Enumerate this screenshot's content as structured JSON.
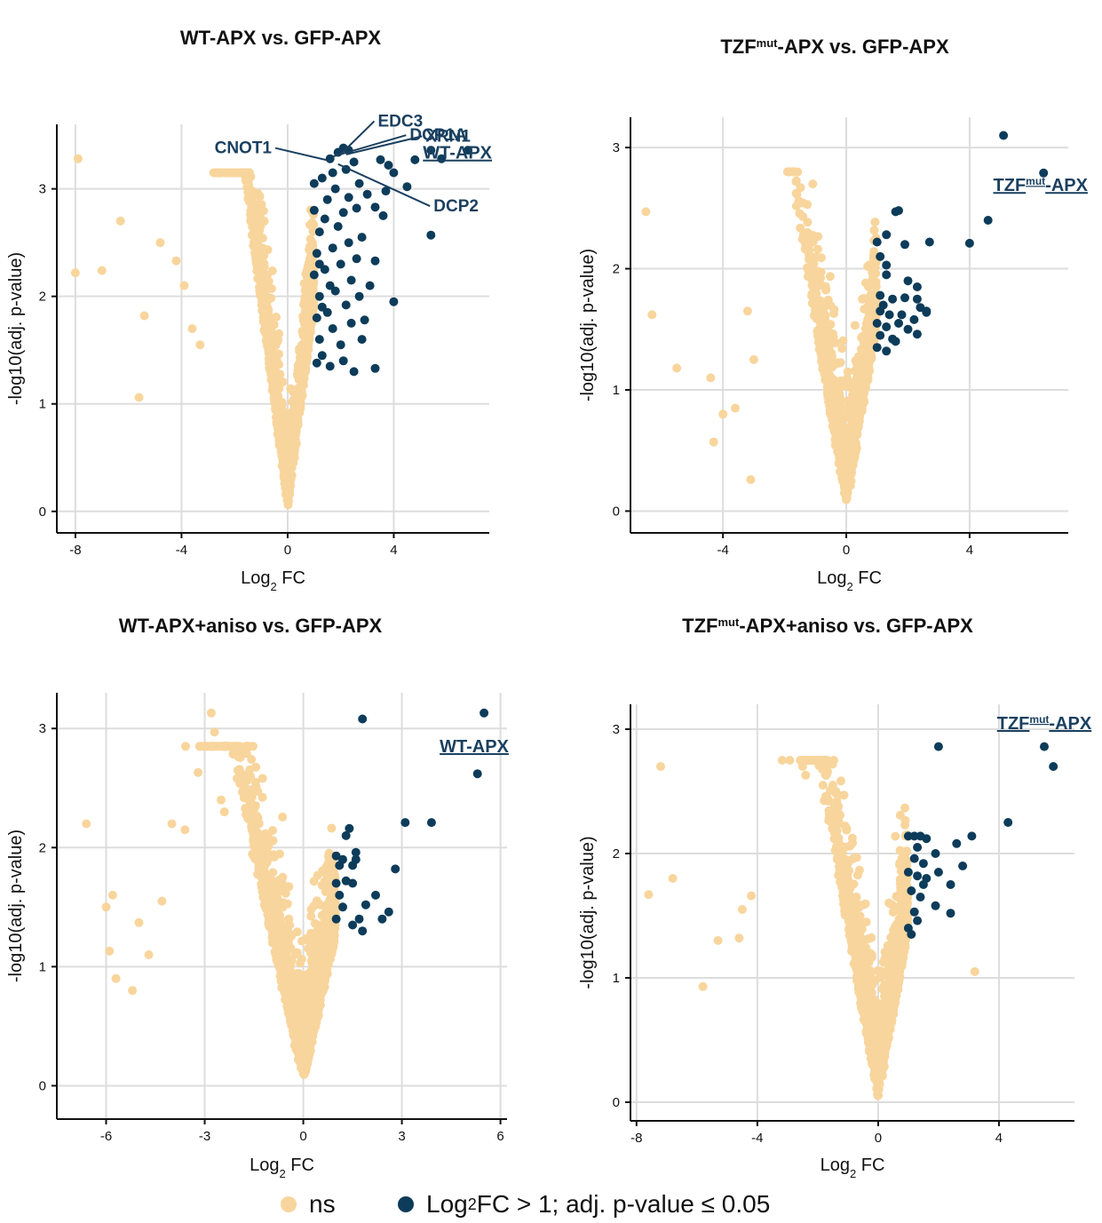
{
  "colors": {
    "ns": "#F8D59C",
    "sig": "#0D3C5A",
    "grid": "#DDDDDD",
    "axis": "#111111",
    "annotation": "#1A4060"
  },
  "legend": {
    "ns_label": "ns",
    "sig_label_pre": "Log",
    "sig_label_sub": "2",
    "sig_label_post": "FC > 1; adj. p-value ≤ 0.05"
  },
  "chart_data": [
    {
      "id": "wt",
      "type": "scatter",
      "title": "WT-APX vs. GFP-APX",
      "xlabel": "Log2 FC",
      "ylabel": "-log10(adj. p-value)",
      "xlim": [
        -8.7,
        7.6
      ],
      "ylim": [
        -0.2,
        3.6
      ],
      "xticks": [
        -8,
        -4,
        0,
        4
      ],
      "yticks": [
        0,
        1,
        2,
        3
      ],
      "seed": 11,
      "ns_count": 1700,
      "ns_spread_neg": 1.25,
      "ns_spread_pos": 1.0,
      "ns_y_slope": 1.9,
      "ns_outliers": [
        [
          -7.9,
          3.28
        ],
        [
          -8.0,
          2.22
        ],
        [
          -7.0,
          2.24
        ],
        [
          -6.3,
          2.7
        ],
        [
          -4.8,
          2.5
        ],
        [
          -5.4,
          1.82
        ],
        [
          -5.6,
          1.06
        ],
        [
          -4.2,
          2.33
        ],
        [
          -3.9,
          2.1
        ],
        [
          -3.6,
          1.7
        ],
        [
          -3.3,
          1.55
        ]
      ],
      "sig_points": [
        [
          1.6,
          3.28
        ],
        [
          1.9,
          3.34
        ],
        [
          2.1,
          3.38
        ],
        [
          2.3,
          3.36
        ],
        [
          2.5,
          3.25
        ],
        [
          2.2,
          3.18
        ],
        [
          1.7,
          3.15
        ],
        [
          1.3,
          3.1
        ],
        [
          1.0,
          3.05
        ],
        [
          3.5,
          3.27
        ],
        [
          3.8,
          3.22
        ],
        [
          4.0,
          3.15
        ],
        [
          4.8,
          3.27
        ],
        [
          5.4,
          3.36
        ],
        [
          5.8,
          3.28
        ],
        [
          6.8,
          3.36
        ],
        [
          3.7,
          2.98
        ],
        [
          4.5,
          3.02
        ],
        [
          3.0,
          2.95
        ],
        [
          3.3,
          2.83
        ],
        [
          3.6,
          2.75
        ],
        [
          5.4,
          2.57
        ],
        [
          3.3,
          2.33
        ],
        [
          4.0,
          1.95
        ],
        [
          3.3,
          1.33
        ],
        [
          2.5,
          1.3
        ],
        [
          1.6,
          1.35
        ],
        [
          1.1,
          1.38
        ],
        [
          1.3,
          1.45
        ],
        [
          2.0,
          1.55
        ],
        [
          2.8,
          1.6
        ],
        [
          1.2,
          1.6
        ],
        [
          1.7,
          1.7
        ],
        [
          2.4,
          1.75
        ],
        [
          2.9,
          1.78
        ],
        [
          1.1,
          1.8
        ],
        [
          1.5,
          1.85
        ],
        [
          2.2,
          1.92
        ],
        [
          2.7,
          2.0
        ],
        [
          3.1,
          2.1
        ],
        [
          1.2,
          2.0
        ],
        [
          1.8,
          2.05
        ],
        [
          2.4,
          2.15
        ],
        [
          1.0,
          2.2
        ],
        [
          1.4,
          2.25
        ],
        [
          2.0,
          2.3
        ],
        [
          2.6,
          2.35
        ],
        [
          1.1,
          2.4
        ],
        [
          1.7,
          2.45
        ],
        [
          2.3,
          2.5
        ],
        [
          2.8,
          2.55
        ],
        [
          1.2,
          2.6
        ],
        [
          1.9,
          2.65
        ],
        [
          1.4,
          2.72
        ],
        [
          2.1,
          2.78
        ],
        [
          2.6,
          2.82
        ],
        [
          1.0,
          2.8
        ],
        [
          1.5,
          2.9
        ],
        [
          2.3,
          2.92
        ],
        [
          1.8,
          3.0
        ],
        [
          2.7,
          3.05
        ],
        [
          1.2,
          2.3
        ],
        [
          1.6,
          2.1
        ],
        [
          2.1,
          1.4
        ],
        [
          1.3,
          1.9
        ]
      ],
      "ns_color_key": "ns",
      "labels": [
        {
          "text": "DCP1A",
          "tx": 4.6,
          "ty": 3.45,
          "px": 1.7,
          "py": 3.3
        },
        {
          "text": "EDC3",
          "tx": 3.4,
          "ty": 3.58,
          "px": 1.95,
          "py": 3.31
        },
        {
          "text": "XRN1",
          "tx": 5.2,
          "ty": 3.44,
          "px": 2.2,
          "py": 3.32
        },
        {
          "text": "CNOT1",
          "tx": -0.6,
          "ty": 3.33,
          "px": 1.6,
          "py": 3.26
        },
        {
          "text": "DCP2",
          "tx": 5.5,
          "ty": 2.79,
          "px": 1.9,
          "py": 3.23
        }
      ],
      "bait": {
        "pre": "WT-APX",
        "sup": "",
        "post": "",
        "tx": 6.4,
        "ty": 3.28
      }
    },
    {
      "id": "tzf",
      "type": "scatter",
      "title_pre": "TZF",
      "title_sup": "mut",
      "title_post": "-APX vs. GFP-APX",
      "xlabel": "Log2 FC",
      "ylabel": "-log10(adj. p-value)",
      "xlim": [
        -7.0,
        7.2
      ],
      "ylim": [
        -0.18,
        3.25
      ],
      "xticks": [
        -4,
        0,
        4
      ],
      "yticks": [
        0,
        1,
        2,
        3
      ],
      "seed": 23,
      "ns_count": 1200,
      "ns_spread_neg": 0.75,
      "ns_spread_pos": 0.75,
      "ns_y_slope": 1.5,
      "ns_outliers": [
        [
          -6.5,
          2.47
        ],
        [
          -6.3,
          1.62
        ],
        [
          -5.5,
          1.18
        ],
        [
          -4.4,
          1.1
        ],
        [
          -4.3,
          0.57
        ],
        [
          -3.1,
          0.26
        ],
        [
          -3.0,
          1.25
        ],
        [
          -4.0,
          0.8
        ],
        [
          -3.6,
          0.85
        ],
        [
          -3.2,
          1.65
        ],
        [
          -1.3,
          2.25
        ],
        [
          -1.2,
          2.15
        ]
      ],
      "sig_points": [
        [
          5.1,
          3.1
        ],
        [
          6.4,
          2.79
        ],
        [
          4.6,
          2.4
        ],
        [
          4.0,
          2.21
        ],
        [
          2.7,
          2.22
        ],
        [
          1.6,
          2.47
        ],
        [
          1.7,
          2.48
        ],
        [
          1.0,
          2.22
        ],
        [
          1.3,
          2.28
        ],
        [
          1.9,
          2.2
        ],
        [
          1.1,
          2.1
        ],
        [
          1.3,
          2.03
        ],
        [
          1.3,
          1.95
        ],
        [
          2.0,
          1.9
        ],
        [
          2.3,
          1.85
        ],
        [
          2.3,
          1.75
        ],
        [
          1.1,
          1.78
        ],
        [
          1.5,
          1.75
        ],
        [
          1.9,
          1.76
        ],
        [
          2.6,
          1.65
        ],
        [
          1.1,
          1.65
        ],
        [
          1.4,
          1.62
        ],
        [
          1.8,
          1.62
        ],
        [
          2.2,
          1.58
        ],
        [
          2.4,
          1.68
        ],
        [
          1.0,
          1.55
        ],
        [
          1.3,
          1.52
        ],
        [
          1.7,
          1.55
        ],
        [
          2.0,
          1.5
        ],
        [
          1.1,
          1.45
        ],
        [
          1.5,
          1.42
        ],
        [
          2.3,
          1.46
        ],
        [
          1.0,
          1.35
        ],
        [
          1.3,
          1.32
        ],
        [
          1.6,
          1.4
        ],
        [
          2.6,
          1.64
        ],
        [
          1.2,
          1.7
        ]
      ],
      "labels": [],
      "bait": {
        "pre": "TZF",
        "sup": "mut",
        "post": "-APX",
        "tx": 6.3,
        "ty": 2.64
      }
    },
    {
      "id": "wtaniso",
      "type": "scatter",
      "title": "WT-APX+aniso vs. GFP-APX",
      "xlabel": "Log2 FC",
      "ylabel": "-log10(adj. p-value)",
      "xlim": [
        -7.5,
        6.2
      ],
      "ylim": [
        -0.28,
        3.3
      ],
      "xticks": [
        -6,
        -3,
        0,
        3,
        6
      ],
      "yticks": [
        0,
        1,
        2,
        3
      ],
      "seed": 37,
      "ns_count": 1900,
      "ns_spread_neg": 1.3,
      "ns_spread_pos": 0.8,
      "ns_y_slope": 1.25,
      "ns_outliers": [
        [
          -6.6,
          2.2
        ],
        [
          -6.0,
          1.5
        ],
        [
          -5.8,
          1.6
        ],
        [
          -5.9,
          1.13
        ],
        [
          -5.7,
          0.9
        ],
        [
          -5.2,
          0.8
        ],
        [
          -5.0,
          1.37
        ],
        [
          -4.7,
          1.1
        ],
        [
          -4.3,
          1.55
        ],
        [
          -4.0,
          2.2
        ],
        [
          -3.6,
          2.15
        ],
        [
          -2.8,
          3.13
        ],
        [
          -2.7,
          2.97
        ],
        [
          -3.2,
          2.63
        ],
        [
          -2.5,
          2.4
        ],
        [
          -2.4,
          2.3
        ]
      ],
      "sig_points": [
        [
          5.5,
          3.13
        ],
        [
          1.8,
          3.08
        ],
        [
          5.3,
          2.62
        ],
        [
          3.1,
          2.21
        ],
        [
          3.9,
          2.21
        ],
        [
          1.4,
          2.16
        ],
        [
          1.3,
          2.1
        ],
        [
          1.0,
          1.93
        ],
        [
          1.6,
          1.96
        ],
        [
          1.2,
          1.9
        ],
        [
          1.5,
          1.85
        ],
        [
          1.1,
          1.85
        ],
        [
          2.8,
          1.82
        ],
        [
          1.0,
          1.7
        ],
        [
          1.5,
          1.7
        ],
        [
          2.2,
          1.6
        ],
        [
          1.1,
          1.6
        ],
        [
          1.9,
          1.52
        ],
        [
          1.2,
          1.5
        ],
        [
          2.6,
          1.46
        ],
        [
          1.0,
          1.4
        ],
        [
          1.7,
          1.4
        ],
        [
          2.4,
          1.4
        ],
        [
          1.5,
          1.35
        ],
        [
          1.8,
          1.3
        ],
        [
          1.3,
          1.72
        ],
        [
          1.6,
          1.9
        ]
      ],
      "labels": [],
      "bait": {
        "pre": "WT-APX",
        "sup": "",
        "post": "",
        "tx": 5.2,
        "ty": 2.8
      }
    },
    {
      "id": "tzfaniso",
      "type": "scatter",
      "title_pre": "TZF",
      "title_sup": "mut",
      "title_post": "-APX+aniso vs. GFP-APX",
      "xlabel": "Log2 FC",
      "ylabel": "-log10(adj. p-value)",
      "xlim": [
        -8.2,
        6.5
      ],
      "ylim": [
        -0.15,
        3.2
      ],
      "xticks": [
        -8,
        -4,
        0,
        4
      ],
      "yticks": [
        0,
        1,
        2,
        3
      ],
      "seed": 53,
      "ns_count": 1700,
      "ns_spread_neg": 1.15,
      "ns_spread_pos": 0.8,
      "ns_y_slope": 1.35,
      "ns_outliers": [
        [
          -7.2,
          2.7
        ],
        [
          -7.6,
          1.67
        ],
        [
          -6.8,
          1.8
        ],
        [
          -5.8,
          0.93
        ],
        [
          -5.3,
          1.3
        ],
        [
          -4.6,
          1.32
        ],
        [
          -4.5,
          1.55
        ],
        [
          -4.2,
          1.66
        ],
        [
          -2.5,
          2.7
        ],
        [
          -2.4,
          2.63
        ],
        [
          -1.5,
          2.55
        ],
        [
          -1.4,
          2.5
        ],
        [
          3.2,
          1.05
        ]
      ],
      "sig_points": [
        [
          2.0,
          2.86
        ],
        [
          5.5,
          2.86
        ],
        [
          5.8,
          2.7
        ],
        [
          4.3,
          2.25
        ],
        [
          3.1,
          2.14
        ],
        [
          2.6,
          2.08
        ],
        [
          1.0,
          2.14
        ],
        [
          1.2,
          2.14
        ],
        [
          1.4,
          2.14
        ],
        [
          1.6,
          2.12
        ],
        [
          1.3,
          2.05
        ],
        [
          1.9,
          2.0
        ],
        [
          1.2,
          1.96
        ],
        [
          1.5,
          1.92
        ],
        [
          2.8,
          1.9
        ],
        [
          1.0,
          1.85
        ],
        [
          1.3,
          1.82
        ],
        [
          2.0,
          1.85
        ],
        [
          1.5,
          1.75
        ],
        [
          2.4,
          1.75
        ],
        [
          1.1,
          1.7
        ],
        [
          1.4,
          1.65
        ],
        [
          1.9,
          1.58
        ],
        [
          1.2,
          1.53
        ],
        [
          2.4,
          1.52
        ],
        [
          1.0,
          1.4
        ],
        [
          1.3,
          1.46
        ],
        [
          1.1,
          1.35
        ],
        [
          1.6,
          1.8
        ]
      ],
      "labels": [],
      "bait": {
        "pre": "TZF",
        "sup": "mut",
        "post": "-APX",
        "tx": 5.5,
        "ty": 3.0
      }
    }
  ]
}
